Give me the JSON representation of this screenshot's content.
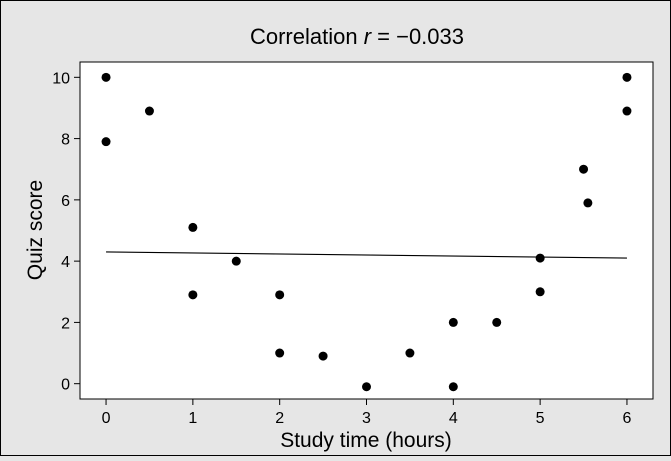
{
  "chart_data": {
    "type": "scatter",
    "title_prefix": "Correlation ",
    "title_var": "r",
    "title_suffix": " = −0.033",
    "xlabel": "Study time (hours)",
    "ylabel": "Quiz score",
    "xlim": [
      -0.3,
      6.3
    ],
    "ylim": [
      -0.5,
      10.5
    ],
    "xticks": [
      0,
      1,
      2,
      3,
      4,
      5,
      6
    ],
    "yticks": [
      0,
      2,
      4,
      6,
      8,
      10
    ],
    "grid": false,
    "points": [
      {
        "x": 0,
        "y": 10
      },
      {
        "x": 0,
        "y": 7.9
      },
      {
        "x": 0.5,
        "y": 8.9
      },
      {
        "x": 1,
        "y": 5.1
      },
      {
        "x": 1,
        "y": 2.9
      },
      {
        "x": 1.5,
        "y": 4
      },
      {
        "x": 2,
        "y": 2.9
      },
      {
        "x": 2,
        "y": 1
      },
      {
        "x": 2.5,
        "y": 0.9
      },
      {
        "x": 3,
        "y": -0.1
      },
      {
        "x": 3.5,
        "y": 1
      },
      {
        "x": 4,
        "y": 2
      },
      {
        "x": 4,
        "y": -0.1
      },
      {
        "x": 4.5,
        "y": 2
      },
      {
        "x": 5,
        "y": 4.1
      },
      {
        "x": 5,
        "y": 3
      },
      {
        "x": 5.5,
        "y": 7
      },
      {
        "x": 5.55,
        "y": 5.9
      },
      {
        "x": 6,
        "y": 10
      },
      {
        "x": 6,
        "y": 8.9
      }
    ],
    "regression_line": {
      "x1": 0,
      "y1": 4.3,
      "x2": 6,
      "y2": 4.1
    },
    "colors": {
      "background": "#e6e6e6",
      "plot_background": "#ffffff",
      "points": "#000000",
      "line": "#000000"
    }
  }
}
